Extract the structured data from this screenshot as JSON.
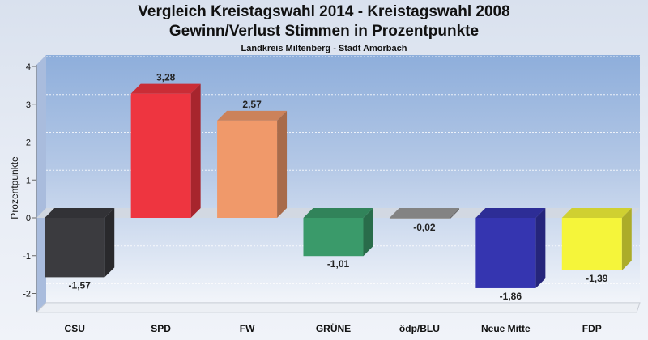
{
  "chart_data": {
    "type": "bar",
    "title": "Vergleich Kreistagswahl 2014 - Kreistagswahl 2008",
    "subtitle": "Gewinn/Verlust Stimmen in Prozentpunkte",
    "subtitle2": "Landkreis Miltenberg - Stadt Amorbach",
    "ylabel": "Prozentpunkte",
    "xlabel": "",
    "categories": [
      "CSU",
      "SPD",
      "FW",
      "GRÜNE",
      "ödp/BLU",
      "Neue Mitte",
      "FDP"
    ],
    "values": [
      -1.57,
      3.28,
      2.57,
      -1.01,
      -0.02,
      -1.86,
      -1.39
    ],
    "value_labels": [
      "-1,57",
      "3,28",
      "2,57",
      "-1,01",
      "-0,02",
      "-1,86",
      "-1,39"
    ],
    "colors": [
      "#3b3b3f",
      "#ee3540",
      "#f0996a",
      "#3a9a6a",
      "#9a9a9a",
      "#3535b0",
      "#f5f53a"
    ],
    "yticks": [
      "4",
      "3",
      "2",
      "1",
      "0",
      "-1",
      "-2"
    ],
    "ylim": [
      -2.5,
      4
    ],
    "grid": true,
    "legend": "none"
  }
}
